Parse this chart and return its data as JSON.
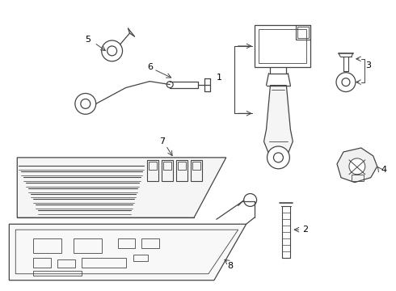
{
  "background_color": "#ffffff",
  "line_color": "#444444",
  "text_color": "#000000",
  "figsize": [
    4.9,
    3.6
  ],
  "dpi": 100
}
